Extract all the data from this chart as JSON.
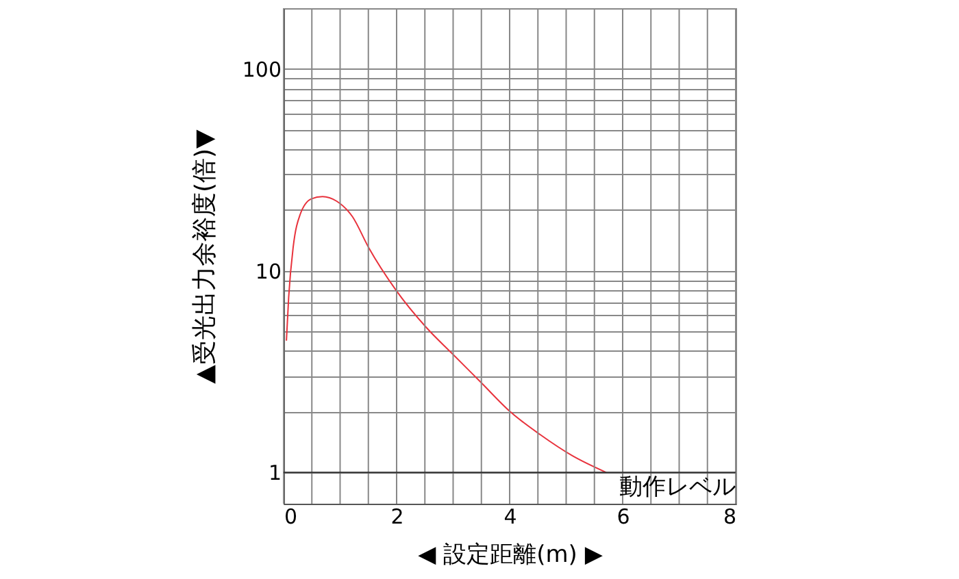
{
  "chart_data": {
    "type": "line",
    "xlabel": "◀ 設定距離(m) ▶",
    "ylabel": "▲受光出力余裕度(倍)▼",
    "log": "y",
    "grid": true,
    "line_style": "solid",
    "marker": "none",
    "xlim": [
      0,
      8
    ],
    "ylim": [
      0.7,
      200
    ],
    "xticks": [
      0,
      {
        "value": 0.5,
        "label": null
      },
      {
        "value": 1,
        "label": null
      },
      {
        "value": 1.5,
        "label": null
      },
      2,
      {
        "value": 2.5,
        "label": null
      },
      {
        "value": 3,
        "label": null
      },
      {
        "value": 3.5,
        "label": null
      },
      4,
      {
        "value": 4.5,
        "label": null
      },
      {
        "value": 5,
        "label": null
      },
      {
        "value": 5.5,
        "label": null
      },
      6,
      {
        "value": 6.5,
        "label": null
      },
      {
        "value": 7,
        "label": null
      },
      {
        "value": 7.5,
        "label": null
      },
      8
    ],
    "yticks": [
      1,
      {
        "value": 2,
        "label": null
      },
      {
        "value": 3,
        "label": null
      },
      {
        "value": 4,
        "label": null
      },
      {
        "value": 5,
        "label": null
      },
      {
        "value": 6,
        "label": null
      },
      {
        "value": 7,
        "label": null
      },
      {
        "value": 8,
        "label": null
      },
      {
        "value": 9,
        "label": null
      },
      10,
      {
        "value": 20,
        "label": null
      },
      {
        "value": 30,
        "label": null
      },
      {
        "value": 40,
        "label": null
      },
      {
        "value": 50,
        "label": null
      },
      {
        "value": 60,
        "label": null
      },
      {
        "value": 70,
        "label": null
      },
      {
        "value": 80,
        "label": null
      },
      {
        "value": 90,
        "label": null
      },
      100,
      {
        "value": 200,
        "label": null
      }
    ],
    "ref_lines": [
      {
        "axis": "y",
        "value": 1,
        "label": "動作レベル",
        "color": "#333333"
      }
    ],
    "series": [
      {
        "color": "#e8323c",
        "x": [
          0.05,
          0.09,
          0.17,
          0.29,
          0.49,
          0.69,
          0.94,
          1.22,
          1.5,
          1.99,
          2.52,
          3.0,
          3.49,
          4.01,
          4.54,
          5.11,
          5.71
        ],
        "values": [
          4.5,
          7.4,
          13.1,
          18.9,
          22.7,
          23.3,
          22.1,
          18.5,
          13.1,
          8.0,
          5.25,
          3.84,
          2.8,
          2.0,
          1.54,
          1.21,
          1.0
        ]
      }
    ]
  }
}
